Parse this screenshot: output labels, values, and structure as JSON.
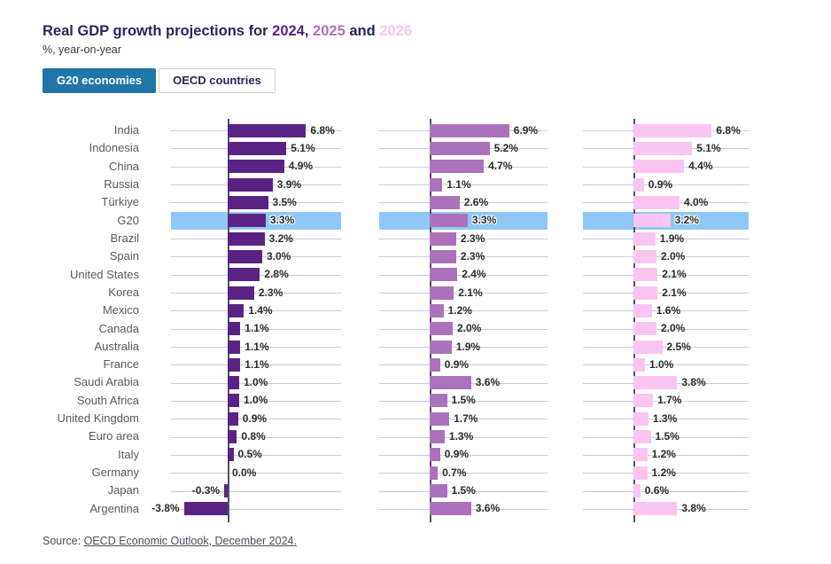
{
  "header": {
    "title_prefix": "Real GDP growth projections for ",
    "title_year1": "2024",
    "title_sep1": ", ",
    "title_year2": "2025",
    "title_sep2": " and ",
    "title_year3": "2026",
    "subtitle": "%, year-on-year"
  },
  "toggles": {
    "g20_label": "G20 economies",
    "oecd_label": "OECD countries",
    "active": "G20 economies"
  },
  "colors": {
    "title_text": "#26265E",
    "year_2024": "#5A2383",
    "year_2025": "#AB72BB",
    "year_2026": "#FBC3EF",
    "bar_2024": "#5A2383",
    "bar_2025": "#AB72BB",
    "bar_2026": "#FBC5F1",
    "highlight_band": "#8FC8F6",
    "active_button_bg": "#2076A8"
  },
  "chart_data": {
    "type": "bar",
    "orientation": "horizontal",
    "title": "Real GDP growth projections for 2024, 2025 and 2026",
    "subtitle": "%, year-on-year",
    "categories": [
      "India",
      "Indonesia",
      "China",
      "Russia",
      "Türkiye",
      "G20",
      "Brazil",
      "Spain",
      "United States",
      "Korea",
      "Mexico",
      "Canada",
      "Australia",
      "France",
      "Saudi Arabia",
      "South Africa",
      "United Kingdom",
      "Euro area",
      "Italy",
      "Germany",
      "Japan",
      "Argentina"
    ],
    "series": [
      {
        "name": "2024",
        "color": "#5A2383",
        "values": [
          6.8,
          5.1,
          4.9,
          3.9,
          3.5,
          3.3,
          3.2,
          3.0,
          2.8,
          2.3,
          1.4,
          1.1,
          1.1,
          1.1,
          1.0,
          1.0,
          0.9,
          0.8,
          0.5,
          0.0,
          -0.3,
          -3.8
        ]
      },
      {
        "name": "2025",
        "color": "#AB72BB",
        "values": [
          6.9,
          5.2,
          4.7,
          1.1,
          2.6,
          3.3,
          2.3,
          2.3,
          2.4,
          2.1,
          1.2,
          2.0,
          1.9,
          0.9,
          3.6,
          1.5,
          1.7,
          1.3,
          0.9,
          0.7,
          1.5,
          3.6
        ]
      },
      {
        "name": "2026",
        "color": "#FBC5F1",
        "values": [
          6.8,
          5.1,
          4.4,
          0.9,
          4.0,
          3.2,
          1.9,
          2.0,
          2.1,
          2.1,
          1.6,
          2.0,
          2.5,
          1.0,
          3.8,
          1.7,
          1.3,
          1.5,
          1.2,
          1.2,
          0.6,
          3.8
        ]
      }
    ],
    "highlighted_category": "G20",
    "value_format": "percent_one_decimal",
    "xlim": [
      -5,
      10
    ],
    "grid": true,
    "legend_position": "in-title"
  },
  "source": {
    "prefix": "Source: ",
    "link_text": "OECD Economic Outlook, December 2024."
  }
}
